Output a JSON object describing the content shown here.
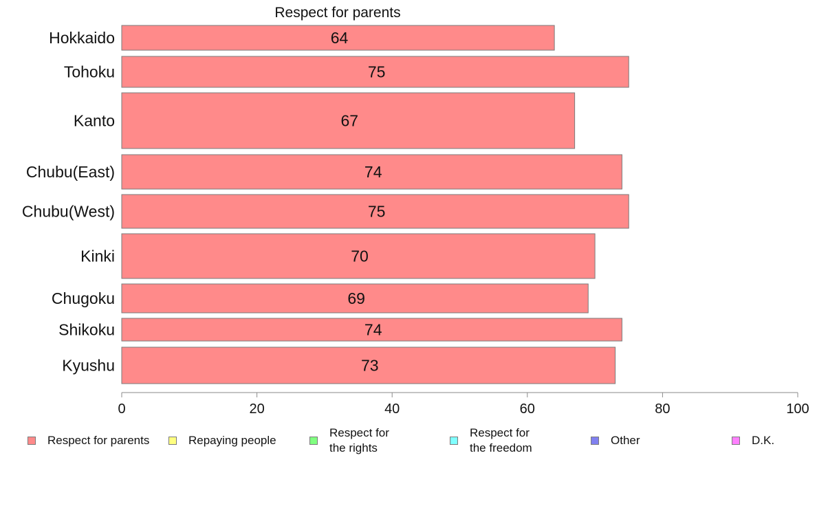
{
  "chart_data": {
    "type": "bar",
    "orientation": "horizontal",
    "title": "Respect for parents",
    "categories": [
      "Hokkaido",
      "Tohoku",
      "Kanto",
      "Chubu(East)",
      "Chubu(West)",
      "Kinki",
      "Chugoku",
      "Shikoku",
      "Kyushu"
    ],
    "values": [
      64,
      75,
      67,
      74,
      75,
      70,
      69,
      74,
      73
    ],
    "data_labels": [
      "64",
      "75",
      "67",
      "74",
      "75",
      "70",
      "69",
      "74",
      "73"
    ],
    "xlim": [
      0,
      100
    ],
    "xticks": [
      0,
      20,
      40,
      60,
      80,
      100
    ],
    "xlabel": "",
    "ylabel": "",
    "bar_color": "#ff8a8a",
    "bar_edge_color": "#7a7a7a",
    "grid": false,
    "legend_position": "bottom"
  },
  "legend": {
    "items": [
      {
        "label": "Respect for parents",
        "color": "#ff8a8a"
      },
      {
        "label": "Repaying people",
        "color": "#ffff80"
      },
      {
        "label": "Respect for\nthe rights",
        "color": "#80ff80"
      },
      {
        "label": "Respect for\nthe freedom",
        "color": "#80ffff"
      },
      {
        "label": "Other",
        "color": "#8080f0"
      },
      {
        "label": "D.K.",
        "color": "#ff80ff"
      }
    ]
  }
}
